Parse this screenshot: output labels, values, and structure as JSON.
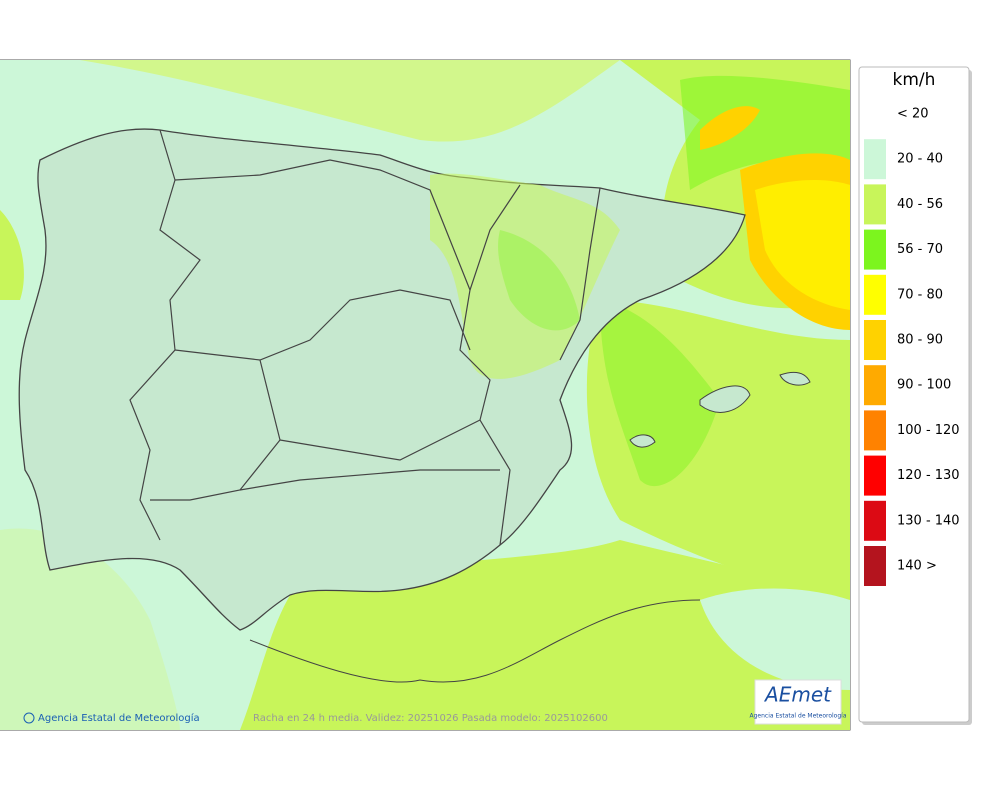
{
  "legend": {
    "title": "km/h",
    "items": [
      {
        "label": "< 20"
      },
      {
        "label": "20 - 40",
        "color": "#ccf7d8"
      },
      {
        "label": "40 - 56",
        "color": "#c8f55a"
      },
      {
        "label": "56 - 70",
        "color": "#7cf51e"
      },
      {
        "label": "70 - 80",
        "color": "#ffff00"
      },
      {
        "label": "80 - 90",
        "color": "#ffd200"
      },
      {
        "label": "90 - 100",
        "color": "#ffaa00"
      },
      {
        "label": "100 - 120",
        "color": "#ff8200"
      },
      {
        "label": "120 - 130",
        "color": "#ff0000"
      },
      {
        "label": "130 - 140",
        "color": "#dc0a14"
      },
      {
        "label": "140 >",
        "color": "#b4141e"
      }
    ]
  },
  "footer": {
    "credit": "Agencia Estatal de Meteorología",
    "caption": "Racha en 24 h media. Validez: 20251026 Pasada modelo: 2025102600"
  },
  "logo": {
    "text": "AEmet",
    "subtitle": "Agencia Estatal de Meteorología"
  }
}
